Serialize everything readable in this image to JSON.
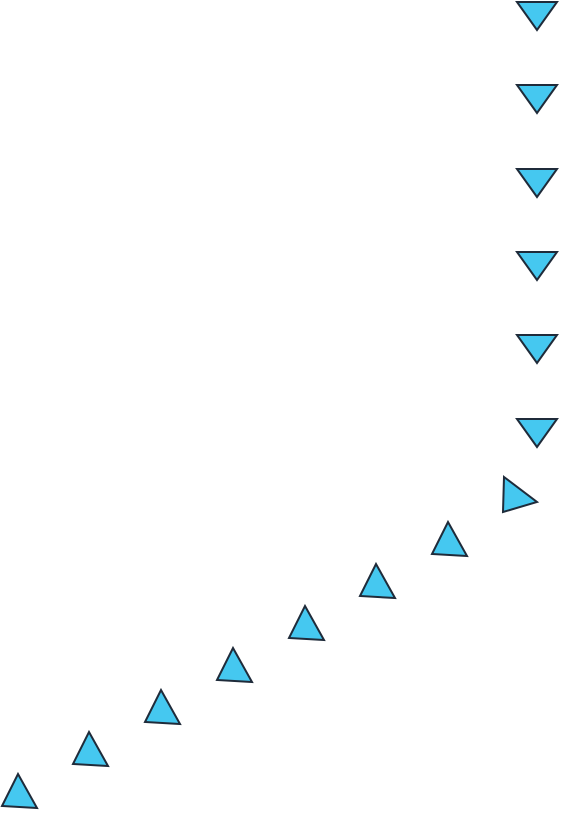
{
  "diagram": {
    "colors": {
      "fill": "#45c8f0",
      "stroke": "#1f2b3a",
      "background": "#ffffff"
    },
    "markers": [
      {
        "icon": "triangle-down-icon"
      },
      {
        "icon": "triangle-down-icon"
      },
      {
        "icon": "triangle-down-icon"
      },
      {
        "icon": "triangle-down-icon"
      },
      {
        "icon": "triangle-down-icon"
      },
      {
        "icon": "triangle-down-icon"
      },
      {
        "icon": "triangle-right-icon"
      },
      {
        "icon": "triangle-up-icon"
      },
      {
        "icon": "triangle-up-icon"
      },
      {
        "icon": "triangle-up-icon"
      },
      {
        "icon": "triangle-up-icon"
      },
      {
        "icon": "triangle-up-icon"
      },
      {
        "icon": "triangle-up-icon"
      },
      {
        "icon": "triangle-up-icon"
      }
    ]
  }
}
